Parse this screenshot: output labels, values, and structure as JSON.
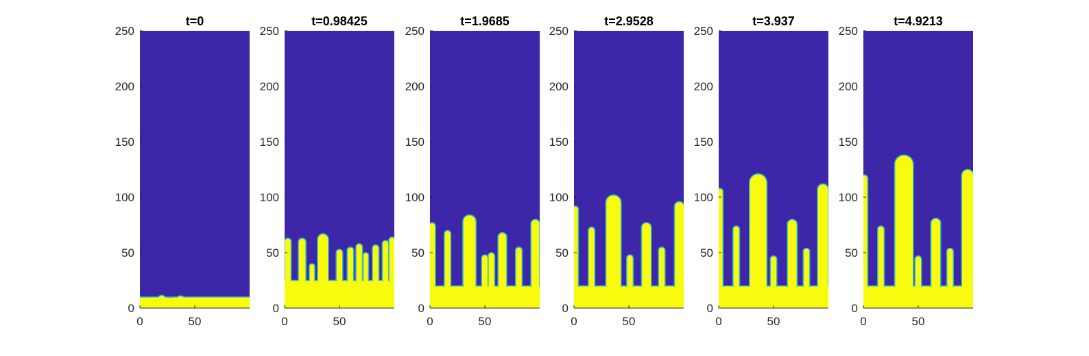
{
  "colors": {
    "background_phase": "#3d26a8",
    "foreground_phase": "#f9fb0e",
    "interface": "#2fb8c8",
    "axis": "#262626"
  },
  "chart_data": [
    {
      "type": "heatmap",
      "title": "t=0",
      "xlim": [
        0,
        100
      ],
      "ylim": [
        0,
        250
      ],
      "xticks": [
        0,
        50
      ],
      "yticks": [
        0,
        50,
        100,
        150,
        200,
        250
      ],
      "xtick_labels": [
        "0",
        "50"
      ],
      "ytick_labels": [
        "0",
        "50",
        "100",
        "150",
        "200",
        "250"
      ],
      "base_level": 10,
      "fingers": [
        {
          "x": 5,
          "w": 10,
          "h": 0
        },
        {
          "x": 20,
          "w": 8,
          "h": 1.5
        },
        {
          "x": 28,
          "w": 6,
          "h": -2
        },
        {
          "x": 37,
          "w": 10,
          "h": 1
        }
      ]
    },
    {
      "type": "heatmap",
      "title": "t=0.98425",
      "xlim": [
        0,
        100
      ],
      "ylim": [
        0,
        250
      ],
      "xticks": [
        0,
        50
      ],
      "yticks": [
        0,
        50,
        100,
        150,
        200,
        250
      ],
      "xtick_labels": [
        "0",
        "50"
      ],
      "ytick_labels": [
        "0",
        "50",
        "100",
        "150",
        "200",
        "250"
      ],
      "base_level": 25,
      "fingers": [
        {
          "x": 3,
          "w": 6,
          "h": 38
        },
        {
          "x": 16,
          "w": 7,
          "h": 38
        },
        {
          "x": 25,
          "w": 5,
          "h": 15
        },
        {
          "x": 35,
          "w": 10,
          "h": 42
        },
        {
          "x": 50,
          "w": 6,
          "h": 28
        },
        {
          "x": 60,
          "w": 6,
          "h": 30
        },
        {
          "x": 68,
          "w": 6,
          "h": 33
        },
        {
          "x": 74,
          "w": 5,
          "h": 25
        },
        {
          "x": 83,
          "w": 6,
          "h": 32
        },
        {
          "x": 92,
          "w": 6,
          "h": 36
        },
        {
          "x": 98,
          "w": 6,
          "h": 39
        }
      ]
    },
    {
      "type": "heatmap",
      "title": "t=1.9685",
      "xlim": [
        0,
        100
      ],
      "ylim": [
        0,
        250
      ],
      "xticks": [
        0,
        50
      ],
      "yticks": [
        0,
        50,
        100,
        150,
        200,
        250
      ],
      "xtick_labels": [
        "0",
        "50"
      ],
      "ytick_labels": [
        "0",
        "50",
        "100",
        "150",
        "200",
        "250"
      ],
      "base_level": 20,
      "fingers": [
        {
          "x": 2,
          "w": 6,
          "h": 57
        },
        {
          "x": 16,
          "w": 6,
          "h": 50
        },
        {
          "x": 36,
          "w": 12,
          "h": 64
        },
        {
          "x": 50,
          "w": 6,
          "h": 28
        },
        {
          "x": 56,
          "w": 6,
          "h": 30
        },
        {
          "x": 66,
          "w": 8,
          "h": 48
        },
        {
          "x": 81,
          "w": 6,
          "h": 35
        },
        {
          "x": 96,
          "w": 8,
          "h": 60
        }
      ]
    },
    {
      "type": "heatmap",
      "title": "t=2.9528",
      "xlim": [
        0,
        100
      ],
      "ylim": [
        0,
        250
      ],
      "xticks": [
        0,
        50
      ],
      "yticks": [
        0,
        50,
        100,
        150,
        200,
        250
      ],
      "xtick_labels": [
        "0",
        "50"
      ],
      "ytick_labels": [
        "0",
        "50",
        "100",
        "150",
        "200",
        "250"
      ],
      "base_level": 20,
      "fingers": [
        {
          "x": 1,
          "w": 6,
          "h": 72
        },
        {
          "x": 16,
          "w": 6,
          "h": 53
        },
        {
          "x": 36,
          "w": 14,
          "h": 82
        },
        {
          "x": 51,
          "w": 6,
          "h": 28
        },
        {
          "x": 66,
          "w": 9,
          "h": 57
        },
        {
          "x": 80,
          "w": 6,
          "h": 35
        },
        {
          "x": 96,
          "w": 9,
          "h": 76
        }
      ]
    },
    {
      "type": "heatmap",
      "title": "t=3.937",
      "xlim": [
        0,
        100
      ],
      "ylim": [
        0,
        250
      ],
      "xticks": [
        0,
        50
      ],
      "yticks": [
        0,
        50,
        100,
        150,
        200,
        250
      ],
      "xtick_labels": [
        "0",
        "50"
      ],
      "ytick_labels": [
        "0",
        "50",
        "100",
        "150",
        "200",
        "250"
      ],
      "base_level": 20,
      "fingers": [
        {
          "x": 1,
          "w": 6,
          "h": 88
        },
        {
          "x": 16,
          "w": 6,
          "h": 54
        },
        {
          "x": 36,
          "w": 16,
          "h": 101
        },
        {
          "x": 50,
          "w": 6,
          "h": 27
        },
        {
          "x": 67,
          "w": 9,
          "h": 60
        },
        {
          "x": 80,
          "w": 6,
          "h": 34
        },
        {
          "x": 95,
          "w": 10,
          "h": 92
        }
      ]
    },
    {
      "type": "heatmap",
      "title": "t=4.9213",
      "xlim": [
        0,
        100
      ],
      "ylim": [
        0,
        250
      ],
      "xticks": [
        0,
        50
      ],
      "yticks": [
        0,
        50,
        100,
        150,
        200,
        250
      ],
      "xtick_labels": [
        "0",
        "50"
      ],
      "ytick_labels": [
        "0",
        "50",
        "100",
        "150",
        "200",
        "250"
      ],
      "base_level": 20,
      "fingers": [
        {
          "x": 1,
          "w": 6,
          "h": 100
        },
        {
          "x": 16,
          "w": 6,
          "h": 54
        },
        {
          "x": 37,
          "w": 17,
          "h": 118
        },
        {
          "x": 50,
          "w": 6,
          "h": 27
        },
        {
          "x": 66,
          "w": 9,
          "h": 61
        },
        {
          "x": 79,
          "w": 6,
          "h": 34
        },
        {
          "x": 95,
          "w": 11,
          "h": 105
        }
      ]
    }
  ]
}
